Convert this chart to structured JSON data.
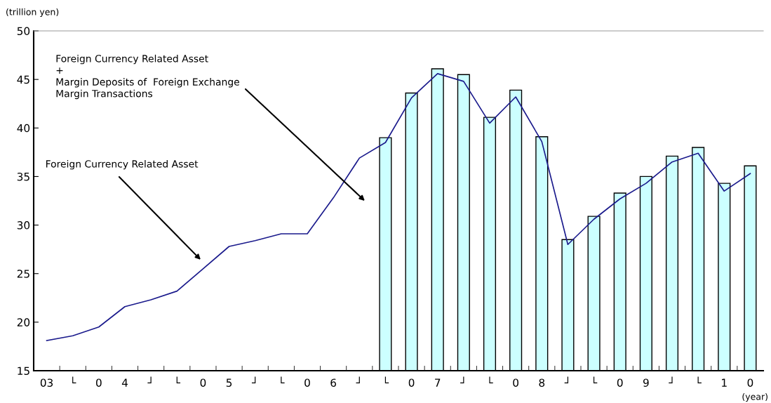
{
  "chart_data": {
    "type": "bar",
    "ylabel": "(trillion yen)",
    "xlabel": "(year)",
    "categories": [
      "03",
      "└",
      "0",
      "4",
      "┘",
      "└",
      "0",
      "5",
      "┘",
      "└",
      "0",
      "6",
      "┘",
      "└",
      "0",
      "7",
      "┘",
      "└",
      "0",
      "8",
      "┘",
      "└",
      "0",
      "9",
      "┘",
      "└",
      "1",
      "0"
    ],
    "series": [
      {
        "color": "#ccffff",
        "values": [
          null,
          null,
          null,
          null,
          null,
          null,
          null,
          null,
          null,
          null,
          null,
          null,
          null,
          39.0,
          43.6,
          46.1,
          45.5,
          41.1,
          43.9,
          39.1,
          28.5,
          30.9,
          33.3,
          35.0,
          37.1,
          38.0,
          34.3,
          36.1
        ]
      },
      {
        "type": "line",
        "color": "#1a1a8c",
        "values": [
          18.1,
          18.6,
          19.5,
          21.6,
          22.3,
          23.2,
          25.5,
          27.8,
          28.4,
          29.1,
          29.1,
          32.8,
          36.9,
          38.5,
          43.1,
          45.6,
          44.8,
          40.5,
          43.2,
          38.6,
          28.0,
          30.6,
          32.7,
          34.3,
          36.5,
          37.4,
          33.5,
          35.3
        ]
      }
    ],
    "ylim": [
      15,
      50
    ],
    "yticks": [
      15,
      20,
      25,
      30,
      35,
      40,
      45,
      50
    ],
    "grid": false,
    "annotations": [
      "Foreign Currency Related Asset\n+\nMargin Deposits of  Foreign Exchange\nMargin Transactions",
      "Foreign Currency Related Asset"
    ]
  }
}
